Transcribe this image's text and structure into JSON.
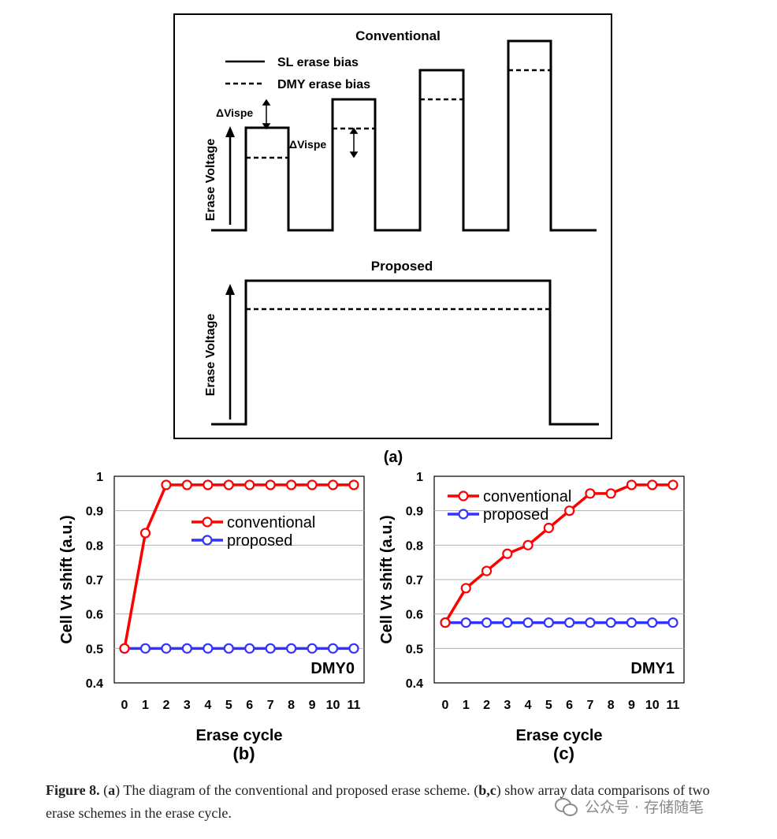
{
  "diagram": {
    "label": "(a)",
    "conventional_title": "Conventional",
    "proposed_title": "Proposed",
    "legend_solid": "SL erase bias",
    "legend_dashed": "DMY erase bias",
    "delta_label_1": "ΔVispe",
    "delta_label_2": "ΔVispe",
    "y_label_top": "Erase Voltage",
    "y_label_bottom": "Erase Voltage"
  },
  "chart_data": [
    {
      "type": "line",
      "panel_label": "(b)",
      "annotation": "DMY0",
      "title": "",
      "xlabel": "Erase cycle",
      "ylabel": "Cell Vt shift (a.u.)",
      "x": [
        0,
        1,
        2,
        3,
        4,
        5,
        6,
        7,
        8,
        9,
        10,
        11
      ],
      "ylim": [
        0.4,
        1.0
      ],
      "yticks": [
        "0.4",
        "0.5",
        "0.6",
        "0.7",
        "0.8",
        "0.9",
        "1"
      ],
      "grid": true,
      "legend_position": "center-right",
      "series": [
        {
          "name": "conventional",
          "color": "#ff0000",
          "values": [
            0.5,
            0.835,
            0.975,
            0.975,
            0.975,
            0.975,
            0.975,
            0.975,
            0.975,
            0.975,
            0.975,
            0.975
          ]
        },
        {
          "name": "proposed",
          "color": "#3333ff",
          "values": [
            0.5,
            0.5,
            0.5,
            0.5,
            0.5,
            0.5,
            0.5,
            0.5,
            0.5,
            0.5,
            0.5,
            0.5
          ]
        }
      ]
    },
    {
      "type": "line",
      "panel_label": "(c)",
      "annotation": "DMY1",
      "title": "",
      "xlabel": "Erase cycle",
      "ylabel": "Cell Vt shift (a.u.)",
      "x": [
        0,
        1,
        2,
        3,
        4,
        5,
        6,
        7,
        8,
        9,
        10,
        11
      ],
      "ylim": [
        0.4,
        1.0
      ],
      "yticks": [
        "0.4",
        "0.5",
        "0.6",
        "0.7",
        "0.8",
        "0.9",
        "1"
      ],
      "grid": true,
      "legend_position": "top-left",
      "series": [
        {
          "name": "conventional",
          "color": "#ff0000",
          "values": [
            0.575,
            0.675,
            0.725,
            0.775,
            0.8,
            0.85,
            0.9,
            0.95,
            0.95,
            0.975,
            0.975,
            0.975
          ]
        },
        {
          "name": "proposed",
          "color": "#3333ff",
          "values": [
            0.575,
            0.575,
            0.575,
            0.575,
            0.575,
            0.575,
            0.575,
            0.575,
            0.575,
            0.575,
            0.575,
            0.575
          ]
        }
      ]
    }
  ],
  "caption": {
    "fig_label": "Figure 8.",
    "a_label": "a",
    "a_text": "The diagram of the conventional and proposed erase scheme.",
    "bc_label": "b,c",
    "bc_text": "show array data comparisons of two erase schemes in the erase cycle."
  },
  "watermark": {
    "text": "公众号 · 存储随笔"
  }
}
